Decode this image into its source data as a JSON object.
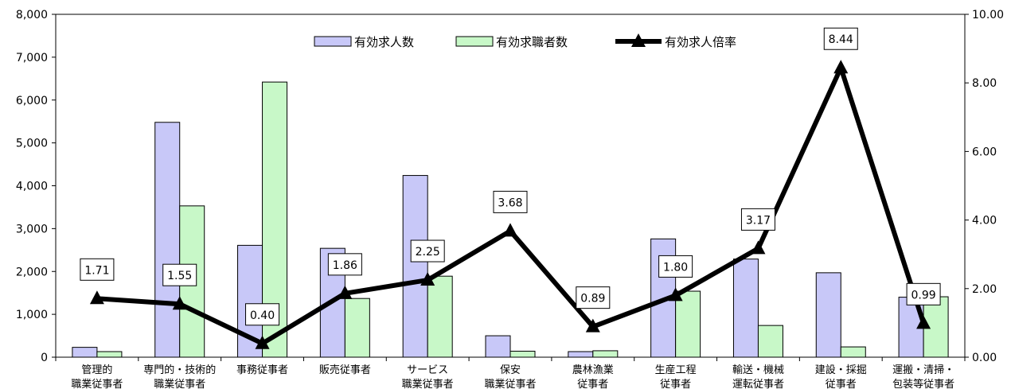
{
  "chart_data": {
    "type": "bar",
    "categories": [
      [
        "管理的",
        "職業従事者"
      ],
      [
        "専門的・技術的",
        "職業従事者"
      ],
      [
        "事務従事者"
      ],
      [
        "販売従事者"
      ],
      [
        "サービス",
        "職業従事者"
      ],
      [
        "保安",
        "職業従事者"
      ],
      [
        "農林漁業",
        "従事者"
      ],
      [
        "生産工程",
        "従事者"
      ],
      [
        "輸送・機械",
        "運転従事者"
      ],
      [
        "建設・採掘",
        "従事者"
      ],
      [
        "運搬・清掃・",
        "包装等従事者"
      ]
    ],
    "series": [
      {
        "name": "有効求人数",
        "values": [
          230,
          5480,
          2610,
          2540,
          4240,
          500,
          130,
          2760,
          2290,
          1970,
          1400
        ],
        "color": "#c8c8f8",
        "axis": "left"
      },
      {
        "name": "有効求職者数",
        "values": [
          130,
          3530,
          6420,
          1370,
          1890,
          140,
          150,
          1540,
          740,
          240,
          1410
        ],
        "color": "#c8f8c8",
        "axis": "left"
      }
    ],
    "ratio_series": {
      "name": "有効求人倍率",
      "values": [
        1.71,
        1.55,
        0.4,
        1.86,
        2.25,
        3.68,
        0.89,
        1.8,
        3.17,
        8.44,
        0.99
      ],
      "labels": [
        "1.71",
        "1.55",
        "0.40",
        "1.86",
        "2.25",
        "3.68",
        "0.89",
        "1.80",
        "3.17",
        "8.44",
        "0.99"
      ],
      "color": "#000000",
      "axis": "right"
    },
    "y_left": {
      "min": 0,
      "max": 8000,
      "ticks": [
        "0",
        "1,000",
        "2,000",
        "3,000",
        "4,000",
        "5,000",
        "6,000",
        "7,000",
        "8,000"
      ]
    },
    "y_right": {
      "min": 0,
      "max": 10,
      "ticks": [
        "0.00",
        "2.00",
        "4.00",
        "6.00",
        "8.00",
        "10.00"
      ]
    },
    "legend_position": "top-center",
    "grid": false
  }
}
